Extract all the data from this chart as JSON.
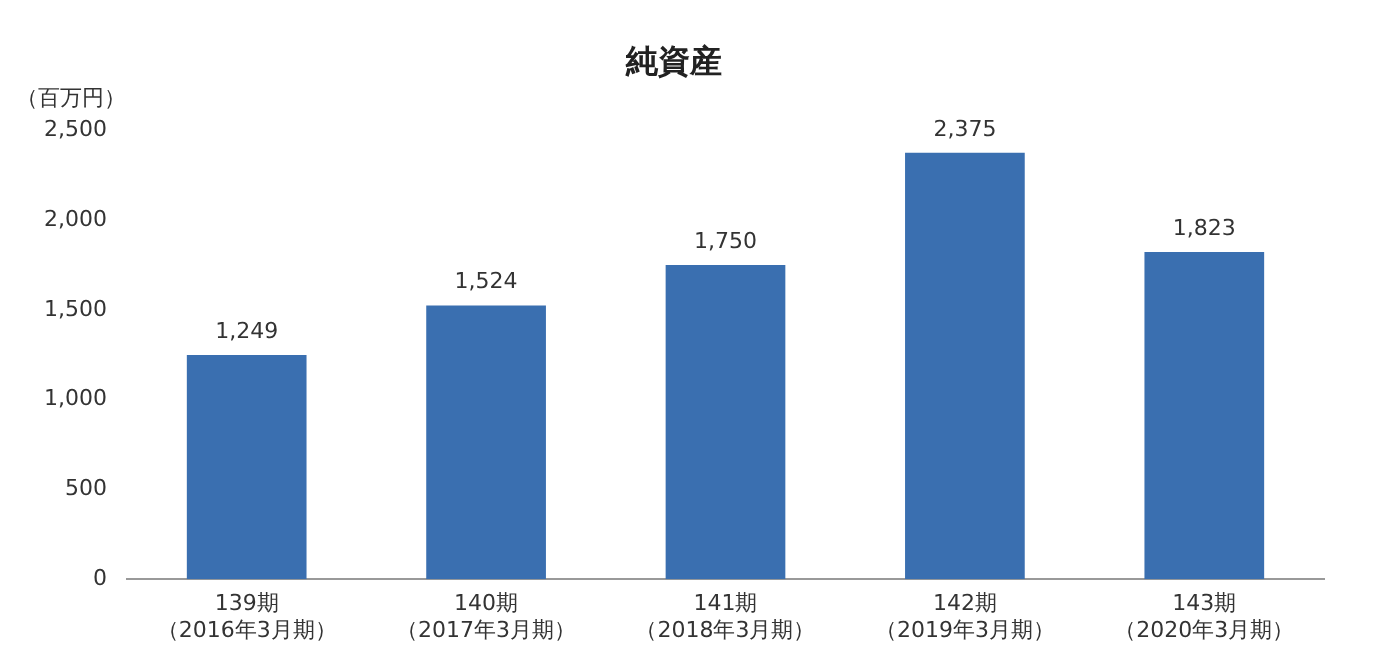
{
  "chart_data": {
    "type": "bar",
    "title": "純資産",
    "ylabel": "（百万円）",
    "categories": [
      "139期（2016年3月期）",
      "140期（2017年3月期）",
      "141期（2018年3月期）",
      "142期（2019年3月期）",
      "143期（2020年3月期）"
    ],
    "values": [
      1249,
      1524,
      1750,
      2375,
      1823
    ],
    "color": "#3a6fb0",
    "value_labels": [
      "1,249",
      "1,524",
      "1,750",
      "2,375",
      "1,823"
    ],
    "ylim": [
      0,
      2500
    ],
    "yticks": [
      0,
      500,
      {
        "value": 1000,
        "label": "1,000"
      },
      {
        "value": 1500,
        "label": "1,500"
      },
      {
        "value": 2000,
        "label": "2,000"
      },
      {
        "value": 2500,
        "label": "2,500"
      }
    ],
    "grid": false
  }
}
